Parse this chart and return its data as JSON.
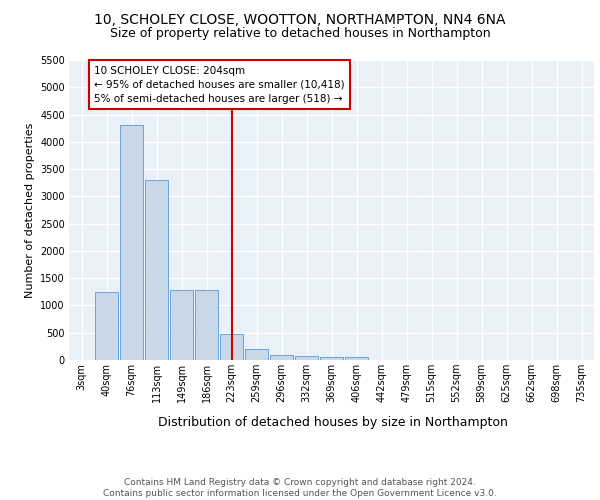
{
  "title1": "10, SCHOLEY CLOSE, WOOTTON, NORTHAMPTON, NN4 6NA",
  "title2": "Size of property relative to detached houses in Northampton",
  "xlabel": "Distribution of detached houses by size in Northampton",
  "ylabel": "Number of detached properties",
  "categories": [
    "3sqm",
    "40sqm",
    "76sqm",
    "113sqm",
    "149sqm",
    "186sqm",
    "223sqm",
    "259sqm",
    "296sqm",
    "332sqm",
    "369sqm",
    "406sqm",
    "442sqm",
    "479sqm",
    "515sqm",
    "552sqm",
    "589sqm",
    "625sqm",
    "662sqm",
    "698sqm",
    "735sqm"
  ],
  "values": [
    0,
    1250,
    4300,
    3300,
    1280,
    1280,
    480,
    200,
    100,
    70,
    60,
    60,
    0,
    0,
    0,
    0,
    0,
    0,
    0,
    0,
    0
  ],
  "bar_color": "#c8d8e8",
  "bar_edgecolor": "#5b9bd5",
  "vline_x_index": 6,
  "vline_color": "#cc0000",
  "annotation_line1": "10 SCHOLEY CLOSE: 204sqm",
  "annotation_line2": "← 95% of detached houses are smaller (10,418)",
  "annotation_line3": "5% of semi-detached houses are larger (518) →",
  "annotation_box_color": "#cc0000",
  "annotation_text_color": "#000000",
  "ylim": [
    0,
    5500
  ],
  "yticks": [
    0,
    500,
    1000,
    1500,
    2000,
    2500,
    3000,
    3500,
    4000,
    4500,
    5000,
    5500
  ],
  "background_color": "#eaf0f8",
  "grid_color": "#ffffff",
  "footer": "Contains HM Land Registry data © Crown copyright and database right 2024.\nContains public sector information licensed under the Open Government Licence v3.0.",
  "title1_fontsize": 10,
  "title2_fontsize": 9,
  "xlabel_fontsize": 9,
  "ylabel_fontsize": 8,
  "tick_fontsize": 7,
  "annotation_fontsize": 7.5,
  "footer_fontsize": 6.5
}
